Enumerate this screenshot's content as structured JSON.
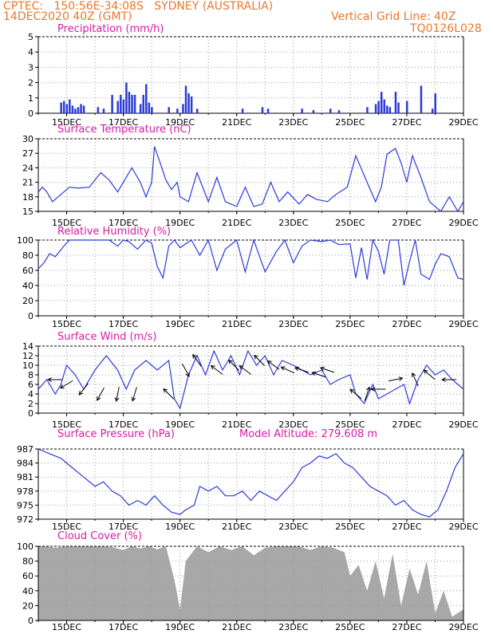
{
  "header": {
    "line1": "CPTEC:   150:56E-34:08S   SYDNEY (AUSTRALIA)",
    "line2": "14DEC2020 40Z (GMT)",
    "grid_note": "Vertical Grid Line: 40Z",
    "run_code": "TQ0126L028"
  },
  "colors": {
    "header_text": "#e8782c",
    "panel_title": "#d81aa6",
    "series": "#2b3bd8",
    "cloud_fill": "#a8a8a8",
    "grid": "#9a9a9a",
    "axes": "#000000"
  },
  "x_axis": {
    "tick_labels": [
      "15DEC",
      "17DEC",
      "19DEC",
      "21DEC",
      "23DEC",
      "25DEC",
      "27DEC",
      "29DEC"
    ],
    "range_days": [
      0,
      15
    ]
  },
  "chart_data": [
    {
      "type": "bar",
      "title": "Precipitation (mm/h)",
      "ylim": [
        0,
        5
      ],
      "yticks": [
        0,
        1,
        2,
        3,
        4,
        5
      ],
      "x": [
        0.8,
        0.9,
        1.0,
        1.1,
        1.2,
        1.3,
        1.4,
        1.5,
        1.6,
        2.1,
        2.3,
        2.6,
        2.8,
        2.9,
        3.0,
        3.1,
        3.2,
        3.3,
        3.4,
        3.6,
        3.7,
        3.8,
        3.9,
        4.0,
        4.6,
        4.9,
        5.1,
        5.2,
        5.3,
        5.4,
        5.6,
        7.2,
        7.9,
        8.1,
        9.3,
        9.7,
        10.3,
        10.6,
        11.6,
        11.9,
        12.0,
        12.1,
        12.2,
        12.3,
        12.4,
        12.6,
        12.7,
        13.0,
        13.5,
        13.9,
        14.0
      ],
      "values": [
        0.7,
        0.8,
        0.6,
        0.9,
        0.5,
        0.3,
        0.4,
        0.6,
        0.5,
        0.4,
        0.3,
        1.2,
        0.8,
        1.2,
        0.9,
        2.0,
        1.4,
        1.2,
        1.2,
        0.6,
        1.2,
        1.9,
        0.7,
        0.4,
        0.4,
        0.3,
        0.6,
        1.8,
        1.3,
        1.1,
        0.3,
        0.3,
        0.4,
        0.3,
        0.3,
        0.2,
        0.3,
        0.2,
        0.4,
        0.6,
        0.8,
        1.4,
        0.9,
        0.5,
        0.4,
        1.4,
        0.7,
        0.8,
        1.8,
        0.3,
        1.3
      ]
    },
    {
      "type": "line",
      "title": "Surface Temperature (nC)",
      "ylim": [
        15,
        30
      ],
      "yticks": [
        15,
        18,
        21,
        24,
        27,
        30
      ],
      "x": [
        0,
        0.15,
        0.3,
        0.5,
        0.7,
        0.9,
        1.1,
        1.4,
        1.8,
        2.2,
        2.5,
        2.8,
        3.0,
        3.3,
        3.6,
        3.8,
        4.0,
        4.1,
        4.3,
        4.5,
        4.7,
        4.9,
        5.0,
        5.3,
        5.6,
        6.0,
        6.3,
        6.6,
        7.0,
        7.3,
        7.6,
        7.9,
        8.2,
        8.5,
        8.8,
        9.2,
        9.5,
        9.8,
        10.2,
        10.5,
        10.9,
        11.2,
        11.6,
        11.9,
        12.1,
        12.3,
        12.6,
        12.8,
        13.0,
        13.2,
        13.5,
        13.8,
        14.2,
        14.5,
        14.8,
        15.0
      ],
      "y": [
        19,
        20,
        19,
        17,
        18,
        19,
        20,
        19.8,
        20,
        23,
        21.5,
        19,
        21,
        24,
        21,
        18,
        21,
        28.4,
        25,
        21.5,
        19.5,
        21,
        18,
        17,
        23,
        17,
        22,
        17,
        16,
        20,
        16,
        16.5,
        21,
        17,
        19,
        16.5,
        18.5,
        17.5,
        17,
        18.5,
        20,
        26.5,
        21,
        17,
        20,
        26.8,
        28,
        25,
        21,
        26.5,
        22,
        17,
        15,
        18,
        15,
        17
      ]
    },
    {
      "type": "line",
      "title": "Relative Humidity (%)",
      "ylim": [
        0,
        100
      ],
      "yticks": [
        0,
        20,
        40,
        60,
        80,
        100
      ],
      "x": [
        0,
        0.2,
        0.4,
        0.6,
        0.9,
        1.1,
        1.3,
        1.5,
        2.0,
        2.5,
        2.8,
        3.0,
        3.2,
        3.5,
        3.8,
        4.0,
        4.2,
        4.4,
        4.6,
        4.8,
        5.0,
        5.4,
        5.7,
        6.0,
        6.3,
        6.6,
        7.0,
        7.3,
        7.6,
        8.0,
        8.4,
        8.7,
        9.0,
        9.3,
        9.6,
        10.0,
        10.3,
        10.6,
        11.0,
        11.2,
        11.4,
        11.6,
        11.8,
        12.0,
        12.2,
        12.4,
        12.7,
        12.9,
        13.1,
        13.3,
        13.5,
        13.8,
        14.0,
        14.2,
        14.5,
        14.8,
        15.0
      ],
      "y": [
        62,
        70,
        82,
        78,
        92,
        100,
        100,
        100,
        100,
        100,
        92,
        100,
        98,
        88,
        100,
        96,
        65,
        50,
        92,
        100,
        90,
        100,
        80,
        100,
        60,
        88,
        100,
        58,
        100,
        58,
        85,
        100,
        70,
        92,
        100,
        98,
        100,
        94,
        95,
        50,
        90,
        48,
        100,
        85,
        55,
        100,
        100,
        40,
        72,
        100,
        55,
        48,
        68,
        82,
        78,
        50,
        48
      ]
    },
    {
      "type": "line",
      "title": "Surface Wind (m/s)",
      "ylim": [
        0,
        14
      ],
      "yticks": [
        0,
        2,
        4,
        6,
        8,
        10,
        12,
        14
      ],
      "x": [
        0,
        0.3,
        0.6,
        0.8,
        1.0,
        1.3,
        1.6,
        2.0,
        2.4,
        2.8,
        3.1,
        3.4,
        3.8,
        4.2,
        4.6,
        4.8,
        5.0,
        5.3,
        5.6,
        5.9,
        6.2,
        6.5,
        6.8,
        7.1,
        7.4,
        7.7,
        8.0,
        8.3,
        8.6,
        9.0,
        9.3,
        9.6,
        10.0,
        10.3,
        10.6,
        11.0,
        11.2,
        11.5,
        11.8,
        12.0,
        12.3,
        12.6,
        12.9,
        13.1,
        13.4,
        13.7,
        14.0,
        14.3,
        14.6,
        15.0
      ],
      "y": [
        5,
        7,
        4,
        6,
        10,
        8,
        5,
        9,
        12,
        9,
        5,
        9,
        11,
        9,
        11,
        3,
        1,
        8,
        12,
        8,
        13,
        9,
        12,
        8,
        13,
        10,
        12,
        8,
        11,
        10,
        9,
        8,
        9,
        6,
        7,
        8,
        4,
        2,
        6,
        3,
        4,
        5,
        6,
        2,
        7,
        10,
        8,
        9,
        7,
        5
      ],
      "wind_direction_arrows": true
    },
    {
      "type": "line",
      "title": "Surface Pressure (hPa)",
      "annotation": "Model Altitude: 279.608 m",
      "ylim": [
        972,
        987
      ],
      "yticks": [
        972,
        975,
        978,
        981,
        984,
        987
      ],
      "x": [
        0,
        0.4,
        0.8,
        1.2,
        1.6,
        2.0,
        2.3,
        2.6,
        2.9,
        3.2,
        3.5,
        3.8,
        4.1,
        4.4,
        4.7,
        5.0,
        5.2,
        5.5,
        5.7,
        6.0,
        6.3,
        6.6,
        6.9,
        7.2,
        7.5,
        7.8,
        8.1,
        8.4,
        8.7,
        9.0,
        9.3,
        9.6,
        9.9,
        10.2,
        10.5,
        10.8,
        11.1,
        11.4,
        11.7,
        12.0,
        12.3,
        12.6,
        12.9,
        13.2,
        13.5,
        13.8,
        14.1,
        14.4,
        14.7,
        15.0
      ],
      "y": [
        987,
        986,
        985,
        983,
        981,
        979,
        980,
        978,
        977,
        975,
        976,
        975,
        977,
        975,
        973.5,
        973,
        974,
        975,
        979,
        978,
        979,
        977,
        977,
        978,
        976,
        978,
        977,
        976,
        978,
        980,
        983,
        984,
        985.5,
        985,
        986,
        984,
        983,
        981,
        979,
        978,
        977,
        975,
        976,
        974,
        973,
        972.5,
        974,
        978,
        983,
        986
      ]
    },
    {
      "type": "area",
      "title": "Cloud Cover (%)",
      "ylim": [
        0,
        100
      ],
      "yticks": [
        0,
        20,
        40,
        60,
        80,
        100
      ],
      "x": [
        0,
        0.3,
        0.6,
        1.0,
        1.4,
        1.8,
        2.2,
        2.6,
        3.0,
        3.3,
        3.6,
        3.9,
        4.2,
        4.5,
        4.8,
        5.0,
        5.2,
        5.4,
        5.6,
        6.0,
        6.4,
        6.8,
        7.2,
        7.6,
        8.0,
        8.4,
        8.8,
        9.2,
        9.6,
        10.0,
        10.4,
        10.8,
        11.0,
        11.3,
        11.6,
        11.9,
        12.2,
        12.5,
        12.8,
        13.1,
        13.4,
        13.7,
        14.0,
        14.3,
        14.6,
        15.0
      ],
      "y": [
        100,
        100,
        98,
        100,
        100,
        100,
        100,
        99,
        95,
        100,
        97,
        100,
        96,
        100,
        55,
        15,
        80,
        90,
        100,
        92,
        100,
        95,
        100,
        88,
        98,
        100,
        100,
        100,
        95,
        100,
        98,
        92,
        60,
        75,
        40,
        80,
        30,
        90,
        20,
        70,
        35,
        80,
        10,
        40,
        5,
        15
      ]
    }
  ]
}
